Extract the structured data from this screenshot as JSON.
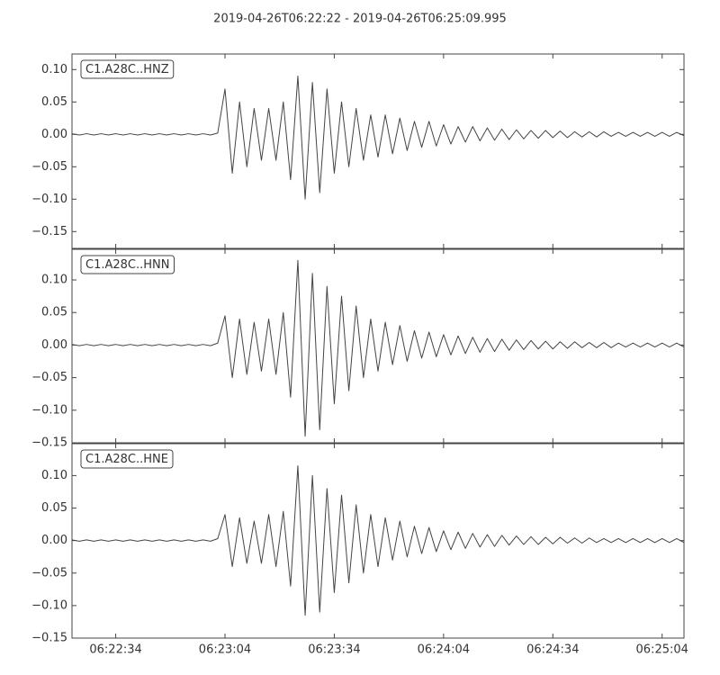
{
  "chart_data": {
    "type": "line",
    "title": "2019-04-26T06:22:22  -  2019-04-26T06:25:09.995",
    "x": [
      "06:22:22",
      "06:22:24",
      "06:22:26",
      "06:22:28",
      "06:22:30",
      "06:22:32",
      "06:22:34",
      "06:22:36",
      "06:22:38",
      "06:22:40",
      "06:22:42",
      "06:22:44",
      "06:22:46",
      "06:22:48",
      "06:22:50",
      "06:22:52",
      "06:22:54",
      "06:22:56",
      "06:22:58",
      "06:23:00",
      "06:23:02",
      "06:23:04",
      "06:23:06",
      "06:23:08",
      "06:23:10",
      "06:23:12",
      "06:23:14",
      "06:23:16",
      "06:23:18",
      "06:23:20",
      "06:23:22",
      "06:23:24",
      "06:23:26",
      "06:23:28",
      "06:23:30",
      "06:23:32",
      "06:23:34",
      "06:23:36",
      "06:23:38",
      "06:23:40",
      "06:23:42",
      "06:23:44",
      "06:23:46",
      "06:23:48",
      "06:23:50",
      "06:23:52",
      "06:23:54",
      "06:23:56",
      "06:23:58",
      "06:24:00",
      "06:24:02",
      "06:24:04",
      "06:24:06",
      "06:24:08",
      "06:24:10",
      "06:24:12",
      "06:24:14",
      "06:24:16",
      "06:24:18",
      "06:24:20",
      "06:24:22",
      "06:24:24",
      "06:24:26",
      "06:24:28",
      "06:24:30",
      "06:24:32",
      "06:24:34",
      "06:24:36",
      "06:24:38",
      "06:24:40",
      "06:24:42",
      "06:24:44",
      "06:24:46",
      "06:24:48",
      "06:24:50",
      "06:24:52",
      "06:24:54",
      "06:24:56",
      "06:24:58",
      "06:25:00",
      "06:25:02",
      "06:25:04",
      "06:25:06",
      "06:25:08",
      "06:25:10"
    ],
    "xlim": [
      "06:22:22",
      "06:25:10"
    ],
    "xticks": [
      "06:22:34",
      "06:23:04",
      "06:23:34",
      "06:24:04",
      "06:24:34",
      "06:25:04"
    ],
    "series": [
      {
        "name": "C1.A28C..HNZ",
        "color": "#444444",
        "ylim": [
          -0.176,
          0.124
        ],
        "yticks": [
          {
            "value": 0.1,
            "label": "0.10"
          },
          {
            "value": 0.05,
            "label": "0.05"
          },
          {
            "value": 0,
            "label": "0.00"
          },
          {
            "value": -0.05,
            "label": "−0.05"
          },
          {
            "value": -0.1,
            "label": "−0.10"
          },
          {
            "value": -0.15,
            "label": "−0.15"
          }
        ],
        "values": [
          0.001,
          -0.001,
          0.001,
          -0.001,
          0.001,
          -0.001,
          0.001,
          -0.001,
          0.001,
          -0.001,
          0.001,
          -0.001,
          0.001,
          -0.001,
          0.001,
          -0.001,
          0.001,
          -0.001,
          0.001,
          -0.001,
          0.002,
          0.07,
          -0.06,
          0.05,
          -0.05,
          0.04,
          -0.04,
          0.04,
          -0.04,
          0.05,
          -0.07,
          0.09,
          -0.1,
          0.08,
          -0.09,
          0.07,
          -0.06,
          0.05,
          -0.05,
          0.04,
          -0.04,
          0.03,
          -0.035,
          0.03,
          -0.03,
          0.025,
          -0.025,
          0.02,
          -0.02,
          0.02,
          -0.018,
          0.015,
          -0.015,
          0.012,
          -0.012,
          0.012,
          -0.01,
          0.01,
          -0.009,
          0.008,
          -0.008,
          0.007,
          -0.007,
          0.006,
          -0.006,
          0.006,
          -0.005,
          0.005,
          -0.005,
          0.004,
          -0.004,
          0.004,
          -0.004,
          0.004,
          -0.003,
          0.003,
          -0.003,
          0.003,
          -0.003,
          0.003,
          -0.003,
          0.003,
          -0.003,
          0.003,
          -0.002
        ]
      },
      {
        "name": "C1.A28C..HNN",
        "color": "#444444",
        "ylim": [
          -0.15,
          0.147
        ],
        "yticks": [
          {
            "value": 0.1,
            "label": "0.10"
          },
          {
            "value": 0.05,
            "label": "0.05"
          },
          {
            "value": 0,
            "label": "0.00"
          },
          {
            "value": -0.05,
            "label": "−0.05"
          },
          {
            "value": -0.1,
            "label": "−0.10"
          },
          {
            "value": -0.15,
            "label": "−0.15"
          }
        ],
        "values": [
          0.001,
          -0.001,
          0.001,
          -0.001,
          0.001,
          -0.001,
          0.001,
          -0.001,
          0.001,
          -0.001,
          0.001,
          -0.001,
          0.001,
          -0.001,
          0.001,
          -0.001,
          0.001,
          -0.001,
          0.001,
          -0.001,
          0.003,
          0.045,
          -0.05,
          0.04,
          -0.045,
          0.035,
          -0.04,
          0.04,
          -0.045,
          0.05,
          -0.08,
          0.13,
          -0.14,
          0.11,
          -0.13,
          0.09,
          -0.09,
          0.075,
          -0.07,
          0.06,
          -0.05,
          0.04,
          -0.04,
          0.035,
          -0.03,
          0.03,
          -0.025,
          0.022,
          -0.02,
          0.02,
          -0.018,
          0.016,
          -0.015,
          0.014,
          -0.013,
          0.012,
          -0.011,
          0.01,
          -0.01,
          0.009,
          -0.008,
          0.008,
          -0.007,
          0.007,
          -0.006,
          0.006,
          -0.006,
          0.005,
          -0.005,
          0.005,
          -0.004,
          0.004,
          -0.004,
          0.004,
          -0.004,
          0.003,
          -0.003,
          0.003,
          -0.003,
          0.003,
          -0.003,
          0.003,
          -0.003,
          0.003,
          -0.003
        ]
      },
      {
        "name": "C1.A28C..HNE",
        "color": "#444444",
        "ylim": [
          -0.15,
          0.149
        ],
        "yticks": [
          {
            "value": 0.1,
            "label": "0.10"
          },
          {
            "value": 0.05,
            "label": "0.05"
          },
          {
            "value": 0,
            "label": "0.00"
          },
          {
            "value": -0.05,
            "label": "−0.05"
          },
          {
            "value": -0.1,
            "label": "−0.10"
          },
          {
            "value": -0.15,
            "label": "−0.15"
          }
        ],
        "values": [
          0.001,
          -0.001,
          0.001,
          -0.001,
          0.001,
          -0.001,
          0.001,
          -0.001,
          0.001,
          -0.001,
          0.001,
          -0.001,
          0.001,
          -0.001,
          0.001,
          -0.001,
          0.001,
          -0.001,
          0.001,
          -0.001,
          0.003,
          0.04,
          -0.04,
          0.035,
          -0.035,
          0.03,
          -0.035,
          0.04,
          -0.04,
          0.045,
          -0.07,
          0.115,
          -0.115,
          0.1,
          -0.11,
          0.08,
          -0.08,
          0.07,
          -0.065,
          0.055,
          -0.05,
          0.04,
          -0.04,
          0.035,
          -0.03,
          0.03,
          -0.025,
          0.022,
          -0.02,
          0.02,
          -0.017,
          0.015,
          -0.014,
          0.013,
          -0.012,
          0.011,
          -0.01,
          0.009,
          -0.009,
          0.008,
          -0.007,
          0.007,
          -0.006,
          0.006,
          -0.006,
          0.005,
          -0.005,
          0.005,
          -0.004,
          0.004,
          -0.004,
          0.004,
          -0.003,
          0.003,
          -0.003,
          0.003,
          -0.003,
          0.003,
          -0.003,
          0.003,
          -0.003,
          0.003,
          -0.003,
          0.003,
          -0.003
        ]
      }
    ]
  }
}
